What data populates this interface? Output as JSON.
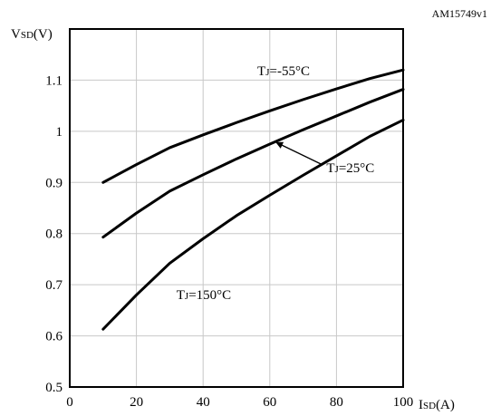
{
  "figure_code": "AM15749v1",
  "chart_data": {
    "type": "line",
    "title": "",
    "ylabel": {
      "main": "V",
      "sub": "SD",
      "unit": "(V)"
    },
    "xlabel": {
      "main": "I",
      "sub": "SD",
      "unit": "(A)"
    },
    "xlim": [
      0,
      100
    ],
    "ylim": [
      0.5,
      1.2
    ],
    "xticks": [
      0,
      20,
      40,
      60,
      80,
      100
    ],
    "xtick_labels": [
      "0",
      "20",
      "40",
      "60",
      "80",
      "100"
    ],
    "yticks": [
      0.5,
      0.6,
      0.7,
      0.8,
      0.9,
      1.0,
      1.1
    ],
    "ytick_labels": [
      "0.5",
      "0.6",
      "0.7",
      "0.8",
      "0.9",
      "1",
      "1.1"
    ],
    "grid": true,
    "series": [
      {
        "name": "TJ=-55°C",
        "label_parts": {
          "main": "T",
          "sub": "J",
          "rest": "=-55°C"
        },
        "x": [
          10,
          20,
          30,
          40,
          50,
          60,
          70,
          80,
          90,
          100
        ],
        "y": [
          0.9,
          0.935,
          0.968,
          0.993,
          1.017,
          1.04,
          1.062,
          1.083,
          1.103,
          1.12
        ]
      },
      {
        "name": "TJ=25°C",
        "label_parts": {
          "main": "T",
          "sub": "J",
          "rest": "=25°C"
        },
        "x": [
          10,
          20,
          30,
          40,
          50,
          60,
          70,
          80,
          90,
          100
        ],
        "y": [
          0.793,
          0.84,
          0.883,
          0.915,
          0.946,
          0.975,
          1.003,
          1.03,
          1.057,
          1.082
        ]
      },
      {
        "name": "TJ=150°C",
        "label_parts": {
          "main": "T",
          "sub": "J",
          "rest": "=150°C"
        },
        "x": [
          10,
          20,
          30,
          40,
          50,
          60,
          70,
          80,
          90,
          100
        ],
        "y": [
          0.613,
          0.68,
          0.742,
          0.79,
          0.835,
          0.875,
          0.914,
          0.952,
          0.99,
          1.022
        ]
      }
    ],
    "annotations": [
      {
        "series": 0,
        "at": [
          72,
          1.11
        ],
        "anchor": "end"
      },
      {
        "series": 1,
        "at": [
          77,
          0.92
        ],
        "anchor": "start",
        "arrow_to": [
          62,
          0.978
        ]
      },
      {
        "series": 2,
        "at": [
          32,
          0.672
        ],
        "anchor": "start"
      }
    ]
  }
}
